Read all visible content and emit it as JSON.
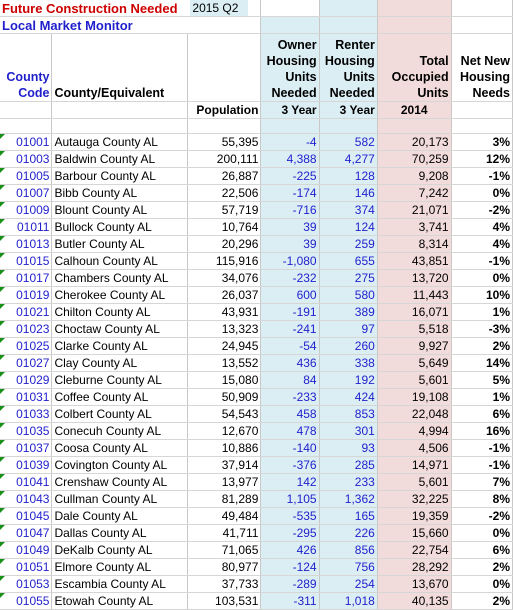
{
  "header": {
    "title": "Future Construction Needed",
    "period": "2015 Q2",
    "subtitle": "Local Market Monitor"
  },
  "columns": {
    "county_code": "County Code",
    "county_equivalent": "County/Equivalent",
    "population": "Population",
    "owner_units": "Owner Housing Units Needed",
    "renter_units": "Renter Housing Units Needed",
    "occupied_units": "Total Occupied Units",
    "net_needs": "Net New Housing Needs",
    "owner_sub": "3 Year",
    "renter_sub": "3 Year",
    "occupied_sub": "2014"
  },
  "rows": [
    {
      "code": "01001",
      "county": "Autauga County AL",
      "population": "55,395",
      "owner": "-4",
      "renter": "582",
      "occupied": "20,173",
      "net": "3%"
    },
    {
      "code": "01003",
      "county": "Baldwin County AL",
      "population": "200,111",
      "owner": "4,388",
      "renter": "4,277",
      "occupied": "70,259",
      "net": "12%"
    },
    {
      "code": "01005",
      "county": "Barbour County AL",
      "population": "26,887",
      "owner": "-225",
      "renter": "128",
      "occupied": "9,208",
      "net": "-1%"
    },
    {
      "code": "01007",
      "county": "Bibb County AL",
      "population": "22,506",
      "owner": "-174",
      "renter": "146",
      "occupied": "7,242",
      "net": "0%"
    },
    {
      "code": "01009",
      "county": "Blount County AL",
      "population": "57,719",
      "owner": "-716",
      "renter": "374",
      "occupied": "21,071",
      "net": "-2%"
    },
    {
      "code": "01011",
      "county": "Bullock County AL",
      "population": "10,764",
      "owner": "39",
      "renter": "124",
      "occupied": "3,741",
      "net": "4%"
    },
    {
      "code": "01013",
      "county": "Butler County AL",
      "population": "20,296",
      "owner": "39",
      "renter": "259",
      "occupied": "8,314",
      "net": "4%"
    },
    {
      "code": "01015",
      "county": "Calhoun County AL",
      "population": "115,916",
      "owner": "-1,080",
      "renter": "655",
      "occupied": "43,851",
      "net": "-1%"
    },
    {
      "code": "01017",
      "county": "Chambers County AL",
      "population": "34,076",
      "owner": "-232",
      "renter": "275",
      "occupied": "13,720",
      "net": "0%"
    },
    {
      "code": "01019",
      "county": "Cherokee County AL",
      "population": "26,037",
      "owner": "600",
      "renter": "580",
      "occupied": "11,443",
      "net": "10%"
    },
    {
      "code": "01021",
      "county": "Chilton County AL",
      "population": "43,931",
      "owner": "-191",
      "renter": "389",
      "occupied": "16,071",
      "net": "1%"
    },
    {
      "code": "01023",
      "county": "Choctaw County AL",
      "population": "13,323",
      "owner": "-241",
      "renter": "97",
      "occupied": "5,518",
      "net": "-3%"
    },
    {
      "code": "01025",
      "county": "Clarke County AL",
      "population": "24,945",
      "owner": "-54",
      "renter": "260",
      "occupied": "9,927",
      "net": "2%"
    },
    {
      "code": "01027",
      "county": "Clay County AL",
      "population": "13,552",
      "owner": "436",
      "renter": "338",
      "occupied": "5,649",
      "net": "14%"
    },
    {
      "code": "01029",
      "county": "Cleburne County AL",
      "population": "15,080",
      "owner": "84",
      "renter": "192",
      "occupied": "5,601",
      "net": "5%"
    },
    {
      "code": "01031",
      "county": "Coffee County AL",
      "population": "50,909",
      "owner": "-233",
      "renter": "424",
      "occupied": "19,108",
      "net": "1%"
    },
    {
      "code": "01033",
      "county": "Colbert County AL",
      "population": "54,543",
      "owner": "458",
      "renter": "853",
      "occupied": "22,048",
      "net": "6%"
    },
    {
      "code": "01035",
      "county": "Conecuh County AL",
      "population": "12,670",
      "owner": "478",
      "renter": "301",
      "occupied": "4,994",
      "net": "16%"
    },
    {
      "code": "01037",
      "county": "Coosa County AL",
      "population": "10,886",
      "owner": "-140",
      "renter": "93",
      "occupied": "4,506",
      "net": "-1%"
    },
    {
      "code": "01039",
      "county": "Covington County AL",
      "population": "37,914",
      "owner": "-376",
      "renter": "285",
      "occupied": "14,971",
      "net": "-1%"
    },
    {
      "code": "01041",
      "county": "Crenshaw County AL",
      "population": "13,977",
      "owner": "142",
      "renter": "233",
      "occupied": "5,601",
      "net": "7%"
    },
    {
      "code": "01043",
      "county": "Cullman County AL",
      "population": "81,289",
      "owner": "1,105",
      "renter": "1,362",
      "occupied": "32,225",
      "net": "8%"
    },
    {
      "code": "01045",
      "county": "Dale County AL",
      "population": "49,484",
      "owner": "-535",
      "renter": "165",
      "occupied": "19,359",
      "net": "-2%"
    },
    {
      "code": "01047",
      "county": "Dallas County AL",
      "population": "41,711",
      "owner": "-295",
      "renter": "226",
      "occupied": "15,660",
      "net": "0%"
    },
    {
      "code": "01049",
      "county": "DeKalb County AL",
      "population": "71,065",
      "owner": "426",
      "renter": "856",
      "occupied": "22,754",
      "net": "6%"
    },
    {
      "code": "01051",
      "county": "Elmore County AL",
      "population": "80,977",
      "owner": "-124",
      "renter": "756",
      "occupied": "28,292",
      "net": "2%"
    },
    {
      "code": "01053",
      "county": "Escambia County AL",
      "population": "37,733",
      "owner": "-289",
      "renter": "254",
      "occupied": "13,670",
      "net": "0%"
    },
    {
      "code": "01055",
      "county": "Etowah County AL",
      "population": "103,531",
      "owner": "-311",
      "renter": "1,018",
      "occupied": "40,135",
      "net": "2%"
    }
  ]
}
